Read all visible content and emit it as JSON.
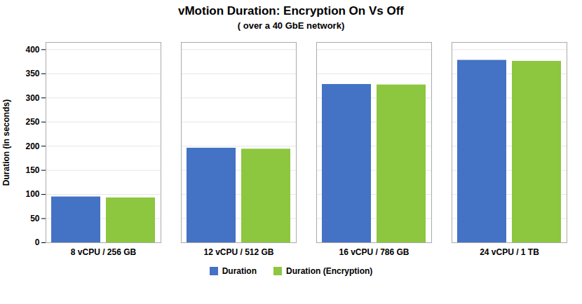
{
  "chart_data": {
    "type": "bar",
    "title": "vMotion Duration: Encryption On Vs Off",
    "subtitle": "( over a 40 GbE network)",
    "ylabel": "Duration (in seconds)",
    "categories": [
      "8 vCPU / 256 GB",
      "12 vCPU / 512 GB",
      "16 vCPU / 786 GB",
      "24 vCPU / 1 TB"
    ],
    "series": [
      {
        "name": "Duration",
        "color": "#4472C4",
        "values": [
          95,
          196,
          328,
          378
        ]
      },
      {
        "name": "Duration (Encryption)",
        "color": "#8DC63F",
        "values": [
          93,
          194,
          327,
          376
        ]
      }
    ],
    "ylim": [
      0,
      415
    ],
    "yticks": [
      0,
      50,
      100,
      150,
      200,
      250,
      300,
      350,
      400
    ],
    "grid": true,
    "legend": "bottom"
  }
}
